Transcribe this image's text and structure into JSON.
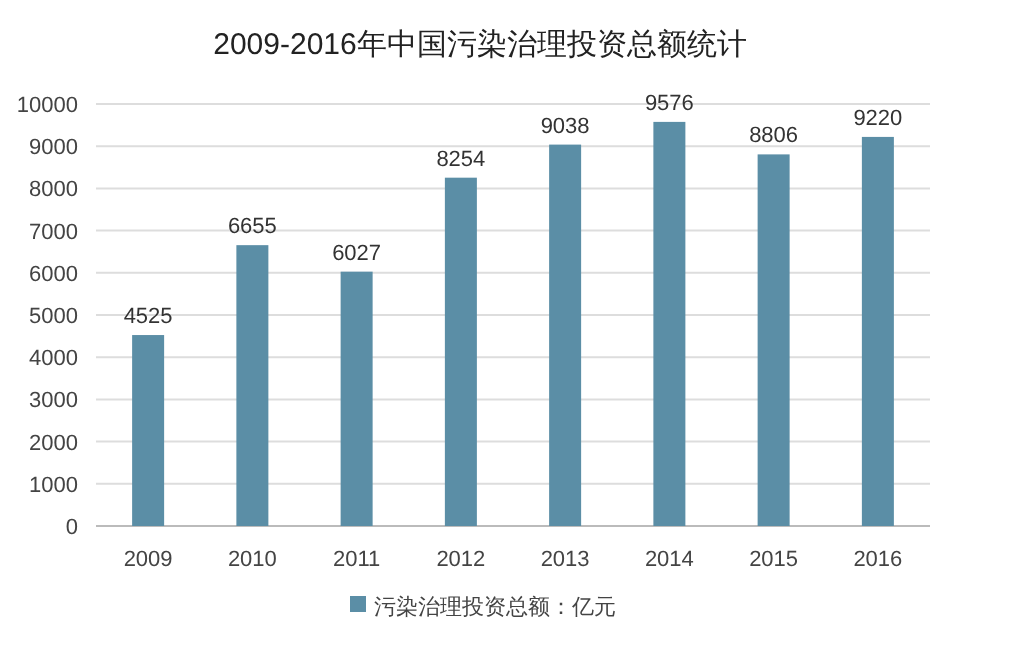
{
  "chart_data": {
    "type": "bar",
    "title": "2009-2016年中国污染治理投资总额统计",
    "categories": [
      "2009",
      "2010",
      "2011",
      "2012",
      "2013",
      "2014",
      "2015",
      "2016"
    ],
    "series": [
      {
        "name": "污染治理投资总额：亿元",
        "color": "#5b8ea6",
        "values": [
          4525,
          6655,
          6027,
          8254,
          9038,
          9576,
          8806,
          9220
        ]
      }
    ],
    "ylim": [
      0,
      10000
    ],
    "yticks": [
      0,
      1000,
      2000,
      3000,
      4000,
      5000,
      6000,
      7000,
      8000,
      9000,
      10000
    ],
    "grid": "y",
    "legend": "bottom",
    "data_labels": true
  }
}
